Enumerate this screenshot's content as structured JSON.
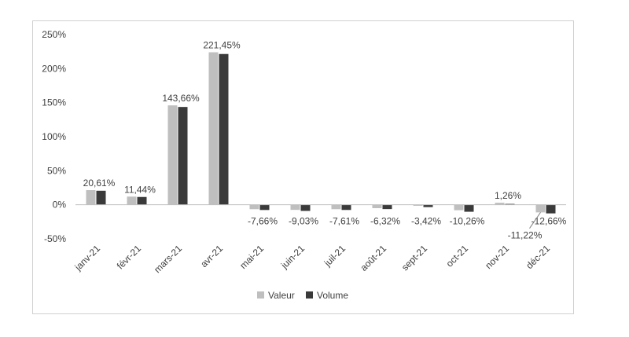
{
  "chart_data": {
    "type": "bar",
    "categories": [
      "janv-21",
      "févr-21",
      "mars-21",
      "avr-21",
      "mai-21",
      "juin-21",
      "juil-21",
      "août-21",
      "sept-21",
      "oct-21",
      "nov-21",
      "déc-21"
    ],
    "series": [
      {
        "name": "Valeur",
        "color": "#bfbfbf",
        "values": [
          21.5,
          12.0,
          146.0,
          224.0,
          -6.5,
          -7.5,
          -6.5,
          -5.0,
          -1.5,
          -8.0,
          3.0,
          -11.22
        ]
      },
      {
        "name": "Volume",
        "color": "#3a3a3a",
        "values": [
          20.61,
          11.44,
          143.66,
          221.45,
          -7.66,
          -9.03,
          -7.61,
          -6.32,
          -3.42,
          -10.26,
          1.26,
          -12.66
        ]
      }
    ],
    "data_labels": [
      "20,61%",
      "11,44%",
      "143,66%",
      "221,45%",
      "-7,66%",
      "-9,03%",
      "-7,61%",
      "-6,32%",
      "-3,42%",
      "-10,26%",
      "1,26%",
      "-12,66%"
    ],
    "extra_label": "-11,22%",
    "y_ticks": [
      "-50%",
      "0%",
      "50%",
      "100%",
      "150%",
      "200%",
      "250%"
    ],
    "y_tick_values": [
      -50,
      0,
      50,
      100,
      150,
      200,
      250
    ],
    "ylim": [
      -50,
      250
    ],
    "legend": [
      "Valeur",
      "Volume"
    ],
    "legend_position": "bottom-center",
    "grid": false,
    "title": "",
    "xlabel": "",
    "ylabel": ""
  }
}
